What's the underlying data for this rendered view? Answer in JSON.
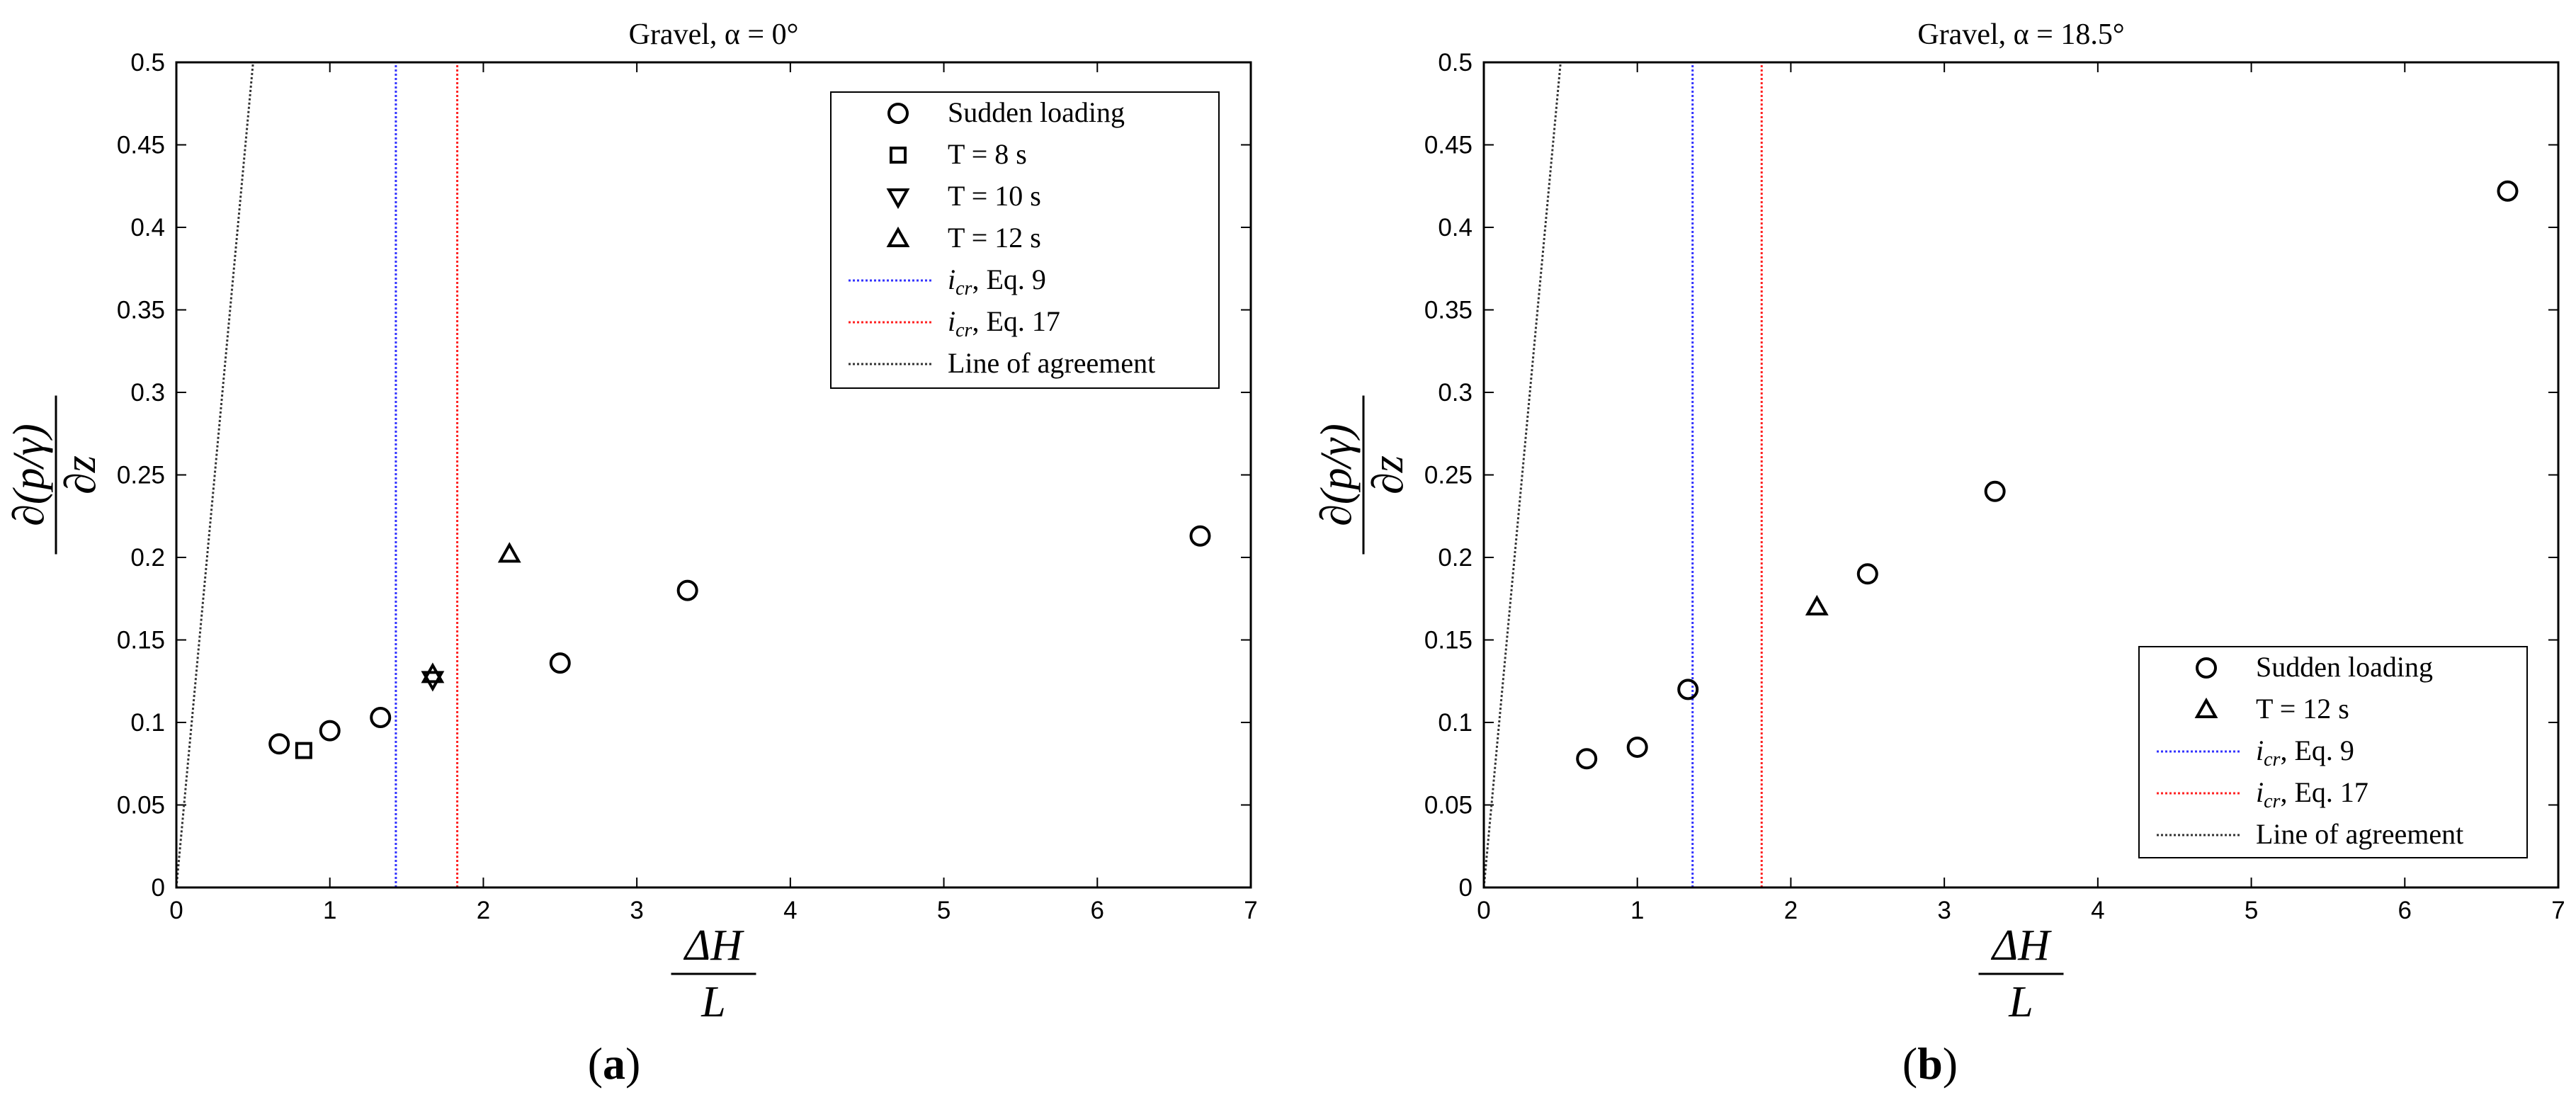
{
  "chart_data": [
    {
      "type": "scatter",
      "panel": "a",
      "title": "Gravel, α = 0°",
      "xlabel_num": "ΔH",
      "xlabel_den": "L",
      "ylabel_num": "∂(p/γ)",
      "ylabel_den": "∂z",
      "xlim": [
        0,
        7
      ],
      "ylim": [
        0,
        0.5
      ],
      "xticks": [
        "0",
        "1",
        "2",
        "3",
        "4",
        "5",
        "6",
        "7"
      ],
      "yticks": [
        "0",
        "0.05",
        "0.1",
        "0.15",
        "0.2",
        "0.25",
        "0.3",
        "0.35",
        "0.4",
        "0.45",
        "0.5"
      ],
      "grid": false,
      "legend_position": "top-right",
      "series": [
        {
          "name": "Sudden loading",
          "marker": "circle",
          "points": [
            [
              0.67,
              0.087
            ],
            [
              1.0,
              0.095
            ],
            [
              1.33,
              0.103
            ],
            [
              2.5,
              0.136
            ],
            [
              3.33,
              0.18
            ],
            [
              6.67,
              0.213
            ]
          ]
        },
        {
          "name": "T = 8 s",
          "marker": "square",
          "points": [
            [
              0.83,
              0.083
            ]
          ]
        },
        {
          "name": "T = 10 s",
          "marker": "triangle-down",
          "points": [
            [
              1.67,
              0.126
            ]
          ]
        },
        {
          "name": "T = 12 s",
          "marker": "triangle-up",
          "points": [
            [
              1.67,
              0.129
            ],
            [
              2.17,
              0.202
            ]
          ]
        }
      ],
      "lines": [
        {
          "name": "icr, Eq. 9",
          "label_sym": "i",
          "label_sub": "cr",
          "label_rest": ", Eq. 9",
          "color": "#3333ff",
          "type": "vertical",
          "x": 1.43
        },
        {
          "name": "icr, Eq. 17",
          "label_sym": "i",
          "label_sub": "cr",
          "label_rest": ", Eq. 17",
          "color": "#ff2222",
          "type": "vertical",
          "x": 1.83
        },
        {
          "name": "Line of agreement",
          "label_sym": "",
          "label_sub": "",
          "label_rest": "Line of agreement",
          "color": "#333333",
          "type": "diagonal",
          "from": [
            0,
            0
          ],
          "to": [
            0.5,
            0.5
          ]
        }
      ]
    },
    {
      "type": "scatter",
      "panel": "b",
      "title": "Gravel, α = 18.5°",
      "xlabel_num": "ΔH",
      "xlabel_den": "L",
      "ylabel_num": "∂(p/γ)",
      "ylabel_den": "∂z",
      "xlim": [
        0,
        7
      ],
      "ylim": [
        0,
        0.5
      ],
      "xticks": [
        "0",
        "1",
        "2",
        "3",
        "4",
        "5",
        "6",
        "7"
      ],
      "yticks": [
        "0",
        "0.05",
        "0.1",
        "0.15",
        "0.2",
        "0.25",
        "0.3",
        "0.35",
        "0.4",
        "0.45",
        "0.5"
      ],
      "grid": false,
      "legend_position": "bottom-right",
      "series": [
        {
          "name": "Sudden loading",
          "marker": "circle",
          "points": [
            [
              0.67,
              0.078
            ],
            [
              1.0,
              0.085
            ],
            [
              1.33,
              0.12
            ],
            [
              2.5,
              0.19
            ],
            [
              3.33,
              0.24
            ],
            [
              6.67,
              0.422
            ]
          ]
        },
        {
          "name": "T = 12 s",
          "marker": "triangle-up",
          "points": [
            [
              2.17,
              0.17
            ]
          ]
        }
      ],
      "lines": [
        {
          "name": "icr, Eq. 9",
          "label_sym": "i",
          "label_sub": "cr",
          "label_rest": ", Eq. 9",
          "color": "#3333ff",
          "type": "vertical",
          "x": 1.36
        },
        {
          "name": "icr, Eq. 17",
          "label_sym": "i",
          "label_sub": "cr",
          "label_rest": ", Eq. 17",
          "color": "#ff2222",
          "type": "vertical",
          "x": 1.81
        },
        {
          "name": "Line of agreement",
          "label_sym": "",
          "label_sub": "",
          "label_rest": "Line of agreement",
          "color": "#333333",
          "type": "diagonal",
          "from": [
            0,
            0
          ],
          "to": [
            0.5,
            0.5
          ]
        }
      ]
    }
  ],
  "panel_labels": [
    "(a)",
    "(b)"
  ]
}
